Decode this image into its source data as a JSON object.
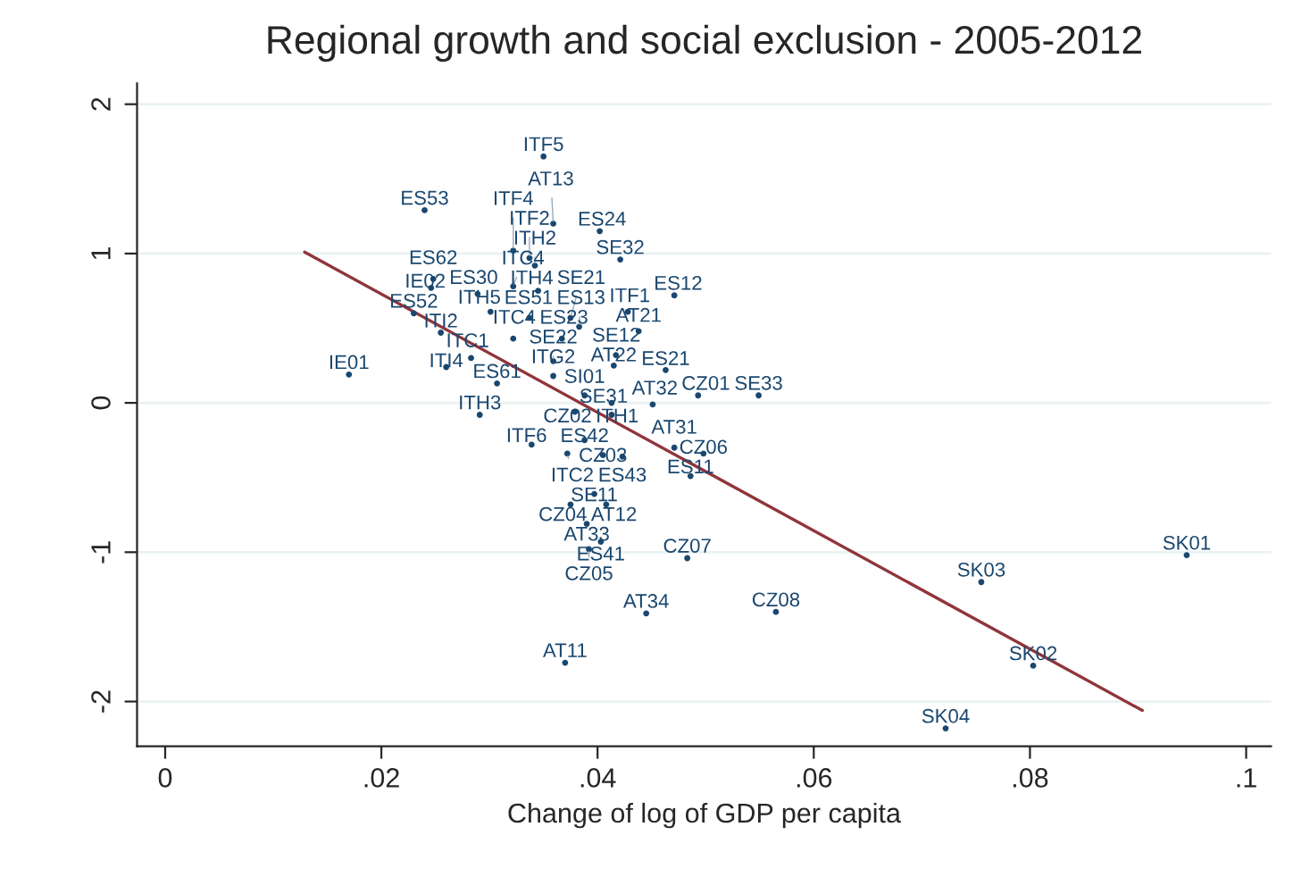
{
  "chart_data": {
    "type": "scatter",
    "title": "Regional growth and social exclusion - 2005-2012",
    "xlabel": "Change of log of GDP per capita",
    "xlim": [
      -0.0026,
      0.1023
    ],
    "ylim": [
      -2.3,
      2.14
    ],
    "xticks": [
      0,
      {
        "value": 0.02,
        "label": ".02"
      },
      {
        "value": 0.04,
        "label": ".04"
      },
      {
        "value": 0.06,
        "label": ".06"
      },
      {
        "value": 0.08,
        "label": ".08"
      },
      {
        "value": 0.1,
        "label": ".1"
      }
    ],
    "yticks": [
      -2,
      -1,
      0,
      1,
      2
    ],
    "grid": "y",
    "series": [
      {
        "color": "#1a476f",
        "marker": "circle",
        "x": [
          0.035,
          0.024,
          0.0359,
          0.0402,
          0.0322,
          0.0337,
          0.0342,
          0.0421,
          0.0248,
          0.0246,
          0.0289,
          0.0322,
          0.0345,
          0.0471,
          0.023,
          0.0301,
          0.0428,
          0.0375,
          0.0337,
          0.0255,
          0.0383,
          0.0322,
          0.0367,
          0.0438,
          0.0283,
          0.026,
          0.0417,
          0.0415,
          0.0359,
          0.0359,
          0.0307,
          0.0463,
          0.017,
          0.0388,
          0.0493,
          0.0549,
          0.0451,
          0.0413,
          0.0291,
          0.0379,
          0.0413,
          0.0339,
          0.0388,
          0.0372,
          0.0405,
          0.0423,
          0.0471,
          0.0498,
          0.0486,
          0.0397,
          0.0375,
          0.0408,
          0.039,
          0.0403,
          0.0392,
          0.0483,
          0.0445,
          0.0565,
          0.037,
          0.0945,
          0.0755,
          0.0803,
          0.0722
        ],
        "values": [
          1.65,
          1.29,
          1.2,
          1.15,
          1.02,
          0.97,
          0.92,
          0.96,
          0.83,
          0.77,
          0.73,
          0.78,
          0.75,
          0.72,
          0.6,
          0.61,
          0.61,
          0.57,
          0.57,
          0.47,
          0.51,
          0.43,
          0.43,
          0.48,
          0.3,
          0.24,
          0.32,
          0.25,
          0.28,
          0.18,
          0.13,
          0.22,
          0.19,
          0.05,
          0.05,
          0.05,
          -0.01,
          0.0,
          -0.08,
          -0.06,
          -0.08,
          -0.28,
          -0.25,
          -0.34,
          -0.35,
          -0.36,
          -0.3,
          -0.34,
          -0.49,
          -0.61,
          -0.68,
          -0.68,
          -0.81,
          -0.93,
          -0.98,
          -1.04,
          -1.41,
          -1.4,
          -1.74,
          -1.02,
          -1.2,
          -1.76,
          -2.18
        ],
        "value_labels": [
          "ITF5",
          "ES53",
          "AT13",
          "ES24",
          "ITF4",
          "ITF2",
          "ITH2",
          "SE32",
          "ES62",
          "IE02",
          "ES30",
          "ITC4",
          "ITH4",
          "ES12",
          "ES52",
          "ITH5",
          "ITF1",
          "SE21",
          "ES51",
          "ITI2",
          "ES13",
          "ITC4",
          "ES23",
          "AT21",
          "ITC1",
          "ITI4",
          "SE12",
          "AT22",
          "SE22",
          "ITG2",
          "ES61",
          "ES21",
          "IE01",
          "SI01",
          "CZ01",
          "SE33",
          "AT32",
          "SE31",
          "ITH3",
          "CZ02",
          "ITH1",
          "ITF6",
          "ES42",
          "ITC2",
          "CZ03",
          "ES43",
          "AT31",
          "CZ06",
          "ES11",
          "SE11",
          "CZ04",
          "AT12",
          "AT33",
          "ES41",
          "CZ05",
          "CZ07",
          "AT34",
          "CZ08",
          "AT11",
          "SK01",
          "SK03",
          "SK02",
          "SK04"
        ]
      },
      {
        "type": "line",
        "color": "#90353b",
        "marker": "none",
        "x": [
          0.0129,
          0.0904
        ],
        "values": [
          1.01,
          -2.06
        ]
      }
    ]
  }
}
